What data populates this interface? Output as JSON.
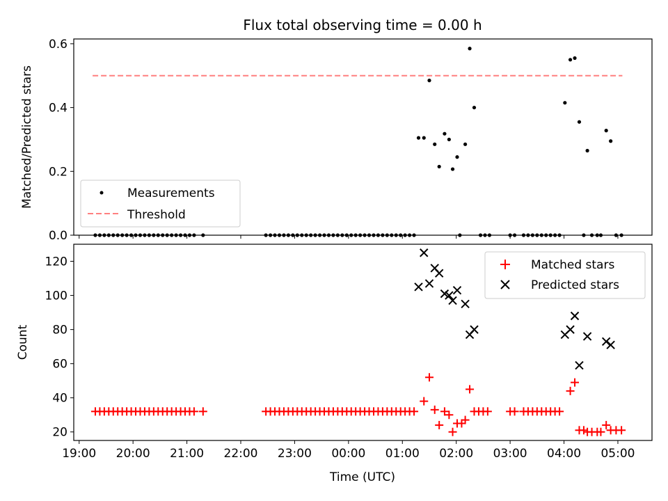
{
  "chart_data": [
    {
      "type": "scatter",
      "title": "Flux total observing time = 0.00 h",
      "ylabel": "Matched/Predicted stars",
      "xlabel": "",
      "ylim": [
        0,
        0.615
      ],
      "xlim": [
        "18:54",
        "05:38"
      ],
      "xticks": [
        "19:00",
        "20:00",
        "21:00",
        "22:00",
        "23:00",
        "00:00",
        "01:00",
        "02:00",
        "03:00",
        "04:00",
        "05:00"
      ],
      "yticks": [
        "0.0",
        "0.2",
        "0.4",
        "0.6"
      ],
      "legend": {
        "position": "lower-left",
        "entries": [
          "Measurements",
          "Threshold"
        ]
      },
      "threshold": {
        "name": "Threshold",
        "value": 0.5,
        "x_range": [
          "19:15",
          "05:05"
        ],
        "color": "#ff7f7f",
        "style": "dashed"
      },
      "series": [
        {
          "name": "Measurements",
          "color": "#000000",
          "points": [
            {
              "x": "19:18",
              "y": 0
            },
            {
              "x": "19:23",
              "y": 0
            },
            {
              "x": "19:28",
              "y": 0
            },
            {
              "x": "19:33",
              "y": 0
            },
            {
              "x": "19:38",
              "y": 0
            },
            {
              "x": "19:43",
              "y": 0
            },
            {
              "x": "19:48",
              "y": 0
            },
            {
              "x": "19:53",
              "y": 0
            },
            {
              "x": "19:58",
              "y": 0
            },
            {
              "x": "20:03",
              "y": 0
            },
            {
              "x": "20:08",
              "y": 0
            },
            {
              "x": "20:13",
              "y": 0
            },
            {
              "x": "20:18",
              "y": 0
            },
            {
              "x": "20:23",
              "y": 0
            },
            {
              "x": "20:28",
              "y": 0
            },
            {
              "x": "20:33",
              "y": 0
            },
            {
              "x": "20:38",
              "y": 0
            },
            {
              "x": "20:43",
              "y": 0
            },
            {
              "x": "20:48",
              "y": 0
            },
            {
              "x": "20:53",
              "y": 0
            },
            {
              "x": "20:58",
              "y": 0
            },
            {
              "x": "21:03",
              "y": 0
            },
            {
              "x": "21:08",
              "y": 0
            },
            {
              "x": "21:18",
              "y": 0
            },
            {
              "x": "22:28",
              "y": 0
            },
            {
              "x": "22:33",
              "y": 0
            },
            {
              "x": "22:38",
              "y": 0
            },
            {
              "x": "22:43",
              "y": 0
            },
            {
              "x": "22:48",
              "y": 0
            },
            {
              "x": "22:53",
              "y": 0
            },
            {
              "x": "22:58",
              "y": 0
            },
            {
              "x": "23:03",
              "y": 0
            },
            {
              "x": "23:08",
              "y": 0
            },
            {
              "x": "23:13",
              "y": 0
            },
            {
              "x": "23:18",
              "y": 0
            },
            {
              "x": "23:23",
              "y": 0
            },
            {
              "x": "23:28",
              "y": 0
            },
            {
              "x": "23:33",
              "y": 0
            },
            {
              "x": "23:38",
              "y": 0
            },
            {
              "x": "23:43",
              "y": 0
            },
            {
              "x": "23:48",
              "y": 0
            },
            {
              "x": "23:53",
              "y": 0
            },
            {
              "x": "23:58",
              "y": 0
            },
            {
              "x": "00:03",
              "y": 0
            },
            {
              "x": "00:08",
              "y": 0
            },
            {
              "x": "00:13",
              "y": 0
            },
            {
              "x": "00:18",
              "y": 0
            },
            {
              "x": "00:23",
              "y": 0
            },
            {
              "x": "00:28",
              "y": 0
            },
            {
              "x": "00:33",
              "y": 0
            },
            {
              "x": "00:38",
              "y": 0
            },
            {
              "x": "00:43",
              "y": 0
            },
            {
              "x": "00:48",
              "y": 0
            },
            {
              "x": "00:53",
              "y": 0
            },
            {
              "x": "00:58",
              "y": 0
            },
            {
              "x": "01:03",
              "y": 0
            },
            {
              "x": "01:08",
              "y": 0
            },
            {
              "x": "01:13",
              "y": 0
            },
            {
              "x": "01:18",
              "y": 0.305
            },
            {
              "x": "01:24",
              "y": 0.305
            },
            {
              "x": "01:30",
              "y": 0.485
            },
            {
              "x": "01:36",
              "y": 0.285
            },
            {
              "x": "01:41",
              "y": 0.215
            },
            {
              "x": "01:47",
              "y": 0.318
            },
            {
              "x": "01:52",
              "y": 0.3
            },
            {
              "x": "01:56",
              "y": 0.207
            },
            {
              "x": "02:01",
              "y": 0.245
            },
            {
              "x": "02:04",
              "y": 0
            },
            {
              "x": "02:10",
              "y": 0.285
            },
            {
              "x": "02:15",
              "y": 0.585
            },
            {
              "x": "02:20",
              "y": 0.4
            },
            {
              "x": "02:27",
              "y": 0
            },
            {
              "x": "02:32",
              "y": 0
            },
            {
              "x": "02:37",
              "y": 0
            },
            {
              "x": "03:00",
              "y": 0
            },
            {
              "x": "03:05",
              "y": 0
            },
            {
              "x": "03:15",
              "y": 0
            },
            {
              "x": "03:20",
              "y": 0
            },
            {
              "x": "03:25",
              "y": 0
            },
            {
              "x": "03:30",
              "y": 0
            },
            {
              "x": "03:35",
              "y": 0
            },
            {
              "x": "03:40",
              "y": 0
            },
            {
              "x": "03:45",
              "y": 0
            },
            {
              "x": "03:50",
              "y": 0
            },
            {
              "x": "03:55",
              "y": 0
            },
            {
              "x": "04:01",
              "y": 0.415
            },
            {
              "x": "04:07",
              "y": 0.55
            },
            {
              "x": "04:12",
              "y": 0.555
            },
            {
              "x": "04:17",
              "y": 0.355
            },
            {
              "x": "04:22",
              "y": 0
            },
            {
              "x": "04:26",
              "y": 0.265
            },
            {
              "x": "04:31",
              "y": 0
            },
            {
              "x": "04:37",
              "y": 0
            },
            {
              "x": "04:41",
              "y": 0
            },
            {
              "x": "04:47",
              "y": 0.328
            },
            {
              "x": "04:52",
              "y": 0.295
            },
            {
              "x": "04:58",
              "y": 0
            },
            {
              "x": "05:04",
              "y": 0
            }
          ]
        }
      ]
    },
    {
      "type": "scatter",
      "title": "",
      "ylabel": "Count",
      "xlabel": "Time (UTC)",
      "ylim": [
        15,
        130
      ],
      "xlim": [
        "18:54",
        "05:38"
      ],
      "xticks": [
        "19:00",
        "20:00",
        "21:00",
        "22:00",
        "23:00",
        "00:00",
        "01:00",
        "02:00",
        "03:00",
        "04:00",
        "05:00"
      ],
      "yticks": [
        "20",
        "40",
        "60",
        "80",
        "100",
        "120"
      ],
      "legend": {
        "position": "top-right",
        "entries": [
          "Matched stars",
          "Predicted stars"
        ]
      },
      "series": [
        {
          "name": "Matched stars",
          "color": "#ff0000",
          "marker": "plus",
          "points": [
            {
              "x": "19:18",
              "y": 32
            },
            {
              "x": "19:23",
              "y": 32
            },
            {
              "x": "19:28",
              "y": 32
            },
            {
              "x": "19:33",
              "y": 32
            },
            {
              "x": "19:38",
              "y": 32
            },
            {
              "x": "19:43",
              "y": 32
            },
            {
              "x": "19:48",
              "y": 32
            },
            {
              "x": "19:53",
              "y": 32
            },
            {
              "x": "19:58",
              "y": 32
            },
            {
              "x": "20:03",
              "y": 32
            },
            {
              "x": "20:08",
              "y": 32
            },
            {
              "x": "20:13",
              "y": 32
            },
            {
              "x": "20:18",
              "y": 32
            },
            {
              "x": "20:23",
              "y": 32
            },
            {
              "x": "20:28",
              "y": 32
            },
            {
              "x": "20:33",
              "y": 32
            },
            {
              "x": "20:38",
              "y": 32
            },
            {
              "x": "20:43",
              "y": 32
            },
            {
              "x": "20:48",
              "y": 32
            },
            {
              "x": "20:53",
              "y": 32
            },
            {
              "x": "20:58",
              "y": 32
            },
            {
              "x": "21:03",
              "y": 32
            },
            {
              "x": "21:08",
              "y": 32
            },
            {
              "x": "21:18",
              "y": 32
            },
            {
              "x": "22:28",
              "y": 32
            },
            {
              "x": "22:33",
              "y": 32
            },
            {
              "x": "22:38",
              "y": 32
            },
            {
              "x": "22:43",
              "y": 32
            },
            {
              "x": "22:48",
              "y": 32
            },
            {
              "x": "22:53",
              "y": 32
            },
            {
              "x": "22:58",
              "y": 32
            },
            {
              "x": "23:03",
              "y": 32
            },
            {
              "x": "23:08",
              "y": 32
            },
            {
              "x": "23:13",
              "y": 32
            },
            {
              "x": "23:18",
              "y": 32
            },
            {
              "x": "23:23",
              "y": 32
            },
            {
              "x": "23:28",
              "y": 32
            },
            {
              "x": "23:33",
              "y": 32
            },
            {
              "x": "23:38",
              "y": 32
            },
            {
              "x": "23:43",
              "y": 32
            },
            {
              "x": "23:48",
              "y": 32
            },
            {
              "x": "23:53",
              "y": 32
            },
            {
              "x": "23:58",
              "y": 32
            },
            {
              "x": "00:03",
              "y": 32
            },
            {
              "x": "00:08",
              "y": 32
            },
            {
              "x": "00:13",
              "y": 32
            },
            {
              "x": "00:18",
              "y": 32
            },
            {
              "x": "00:23",
              "y": 32
            },
            {
              "x": "00:28",
              "y": 32
            },
            {
              "x": "00:33",
              "y": 32
            },
            {
              "x": "00:38",
              "y": 32
            },
            {
              "x": "00:43",
              "y": 32
            },
            {
              "x": "00:48",
              "y": 32
            },
            {
              "x": "00:53",
              "y": 32
            },
            {
              "x": "00:58",
              "y": 32
            },
            {
              "x": "01:03",
              "y": 32
            },
            {
              "x": "01:08",
              "y": 32
            },
            {
              "x": "01:13",
              "y": 32
            },
            {
              "x": "01:24",
              "y": 38
            },
            {
              "x": "01:30",
              "y": 52
            },
            {
              "x": "01:36",
              "y": 33
            },
            {
              "x": "01:41",
              "y": 24
            },
            {
              "x": "01:47",
              "y": 32
            },
            {
              "x": "01:52",
              "y": 30
            },
            {
              "x": "01:56",
              "y": 20
            },
            {
              "x": "02:01",
              "y": 25
            },
            {
              "x": "02:06",
              "y": 25
            },
            {
              "x": "02:10",
              "y": 27
            },
            {
              "x": "02:15",
              "y": 45
            },
            {
              "x": "02:20",
              "y": 32
            },
            {
              "x": "02:25",
              "y": 32
            },
            {
              "x": "02:30",
              "y": 32
            },
            {
              "x": "02:35",
              "y": 32
            },
            {
              "x": "03:00",
              "y": 32
            },
            {
              "x": "03:05",
              "y": 32
            },
            {
              "x": "03:15",
              "y": 32
            },
            {
              "x": "03:20",
              "y": 32
            },
            {
              "x": "03:25",
              "y": 32
            },
            {
              "x": "03:30",
              "y": 32
            },
            {
              "x": "03:35",
              "y": 32
            },
            {
              "x": "03:40",
              "y": 32
            },
            {
              "x": "03:45",
              "y": 32
            },
            {
              "x": "03:50",
              "y": 32
            },
            {
              "x": "03:55",
              "y": 32
            },
            {
              "x": "04:07",
              "y": 44
            },
            {
              "x": "04:12",
              "y": 49
            },
            {
              "x": "04:17",
              "y": 21
            },
            {
              "x": "04:22",
              "y": 21
            },
            {
              "x": "04:26",
              "y": 20
            },
            {
              "x": "04:31",
              "y": 20
            },
            {
              "x": "04:37",
              "y": 20
            },
            {
              "x": "04:41",
              "y": 20
            },
            {
              "x": "04:47",
              "y": 24
            },
            {
              "x": "04:52",
              "y": 21
            },
            {
              "x": "04:58",
              "y": 21
            },
            {
              "x": "05:04",
              "y": 21
            }
          ]
        },
        {
          "name": "Predicted stars",
          "color": "#000000",
          "marker": "x",
          "points": [
            {
              "x": "01:18",
              "y": 105
            },
            {
              "x": "01:24",
              "y": 125
            },
            {
              "x": "01:30",
              "y": 107
            },
            {
              "x": "01:36",
              "y": 116
            },
            {
              "x": "01:41",
              "y": 113
            },
            {
              "x": "01:47",
              "y": 101
            },
            {
              "x": "01:52",
              "y": 100
            },
            {
              "x": "01:56",
              "y": 97
            },
            {
              "x": "02:01",
              "y": 103
            },
            {
              "x": "02:10",
              "y": 95
            },
            {
              "x": "02:15",
              "y": 77
            },
            {
              "x": "02:20",
              "y": 80
            },
            {
              "x": "04:01",
              "y": 77
            },
            {
              "x": "04:07",
              "y": 80
            },
            {
              "x": "04:12",
              "y": 88
            },
            {
              "x": "04:17",
              "y": 59
            },
            {
              "x": "04:26",
              "y": 76
            },
            {
              "x": "04:47",
              "y": 73
            },
            {
              "x": "04:52",
              "y": 71
            }
          ]
        }
      ]
    }
  ]
}
